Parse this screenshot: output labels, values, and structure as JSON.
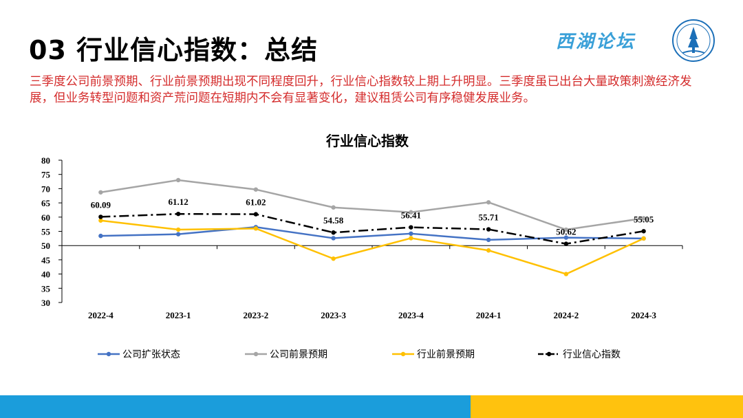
{
  "slide": {
    "title": "03 行业信心指数：总结",
    "brand": "西湖论坛",
    "summary": "三季度公司前景预期、行业前景预期出现不同程度回升，行业信心指数较上期上升明显。三季度虽已出台大量政策刺激经济发展，但业务转型问题和资产荒问题在短期内不会有显著变化，建议租赁公司有序稳健发展业务。"
  },
  "colors": {
    "footer_left": "#1b9ddb",
    "footer_right": "#ffc20e",
    "summary_text": "#d42c2c",
    "brand_text": "#3aa0d8"
  },
  "chart_data": {
    "type": "line",
    "title": "行业信心指数",
    "xlabel": "",
    "ylabel": "",
    "categories": [
      "2022-4",
      "2023-1",
      "2023-2",
      "2023-3",
      "2023-4",
      "2024-1",
      "2024-2",
      "2024-3"
    ],
    "ylim": [
      30,
      80
    ],
    "yticks": [
      30,
      35,
      40,
      45,
      50,
      55,
      60,
      65,
      70,
      75,
      80
    ],
    "baseline": 50,
    "grid": false,
    "legend": "bottom",
    "series": [
      {
        "name": "公司扩张状态",
        "color": "#4472c4",
        "dash": "none",
        "values": [
          53.4,
          54.0,
          56.5,
          52.6,
          54.2,
          52.0,
          52.8,
          52.5
        ]
      },
      {
        "name": "公司前景预期",
        "color": "#a5a5a5",
        "dash": "none",
        "values": [
          68.7,
          73.0,
          69.7,
          63.4,
          61.7,
          65.2,
          55.6,
          59.6
        ]
      },
      {
        "name": "行业前景预期",
        "color": "#ffc000",
        "dash": "none",
        "values": [
          58.8,
          55.6,
          56.0,
          45.4,
          52.6,
          48.3,
          40.0,
          52.5
        ]
      },
      {
        "name": "行业信心指数",
        "color": "#000000",
        "dash": "dashdot",
        "values": [
          60.09,
          61.12,
          61.02,
          54.58,
          56.41,
          55.71,
          50.62,
          55.05
        ],
        "labels": [
          "60.09",
          "61.12",
          "61.02",
          "54.58",
          "56.41",
          "55.71",
          "50.62",
          "55.05"
        ]
      }
    ]
  }
}
